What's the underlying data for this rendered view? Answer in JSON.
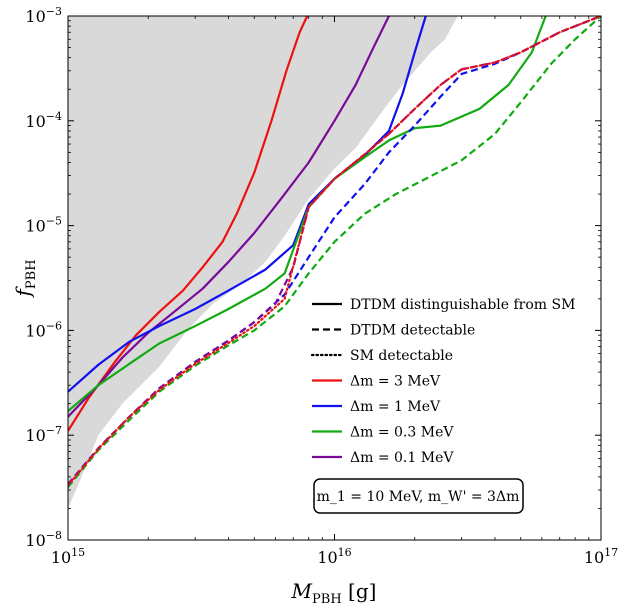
{
  "chart_data": {
    "type": "line",
    "xscale": "log",
    "yscale": "log",
    "xlim": [
      1000000000000000.0,
      1e+17
    ],
    "ylim": [
      1e-08,
      0.001
    ],
    "xlabel": "M_PBH [g]",
    "ylabel": "f_PBH",
    "grid": false,
    "legend_position": "lower-right",
    "x_ticks": [
      {
        "value": 1000000000000000.0,
        "label": "10^15"
      },
      {
        "value": 1e+16,
        "label": "10^16"
      },
      {
        "value": 1e+17,
        "label": "10^17"
      }
    ],
    "y_ticks": [
      {
        "value": 1e-08,
        "label": "10^-8"
      },
      {
        "value": 1e-07,
        "label": "10^-7"
      },
      {
        "value": 1e-06,
        "label": "10^-6"
      },
      {
        "value": 1e-05,
        "label": "10^-5"
      },
      {
        "value": 0.0001,
        "label": "10^-4"
      },
      {
        "value": 0.001,
        "label": "10^-3"
      }
    ],
    "excluded_region": {
      "color": "#d9d9d9",
      "boundary": [
        [
          1000000000000000.0,
          2e-08
        ],
        [
          1100000000000000.0,
          3.5e-08
        ],
        [
          1300000000000000.0,
          1e-07
        ],
        [
          1600000000000000.0,
          2e-07
        ],
        [
          2200000000000000.0,
          4.5e-07
        ],
        [
          2800000000000000.0,
          1e-06
        ],
        [
          3500000000000000.0,
          1.8e-06
        ],
        [
          4500000000000000.0,
          2.8e-06
        ],
        [
          5500000000000000.0,
          4.5e-06
        ],
        [
          6500000000000000.0,
          8e-06
        ],
        [
          8000000000000000.0,
          1.8e-05
        ],
        [
          1e+16,
          3.5e-05
        ],
        [
          1.2e+16,
          5.5e-05
        ],
        [
          1.5e+16,
          0.00012
        ],
        [
          1.8e+16,
          0.00022
        ],
        [
          2.3e+16,
          0.00045
        ],
        [
          2.6e+16,
          0.0006
        ],
        [
          2.9e+16,
          0.001
        ]
      ]
    },
    "legend": [
      {
        "label": "DTDM distinguishable from SM",
        "color": "#000000",
        "dash": "solid"
      },
      {
        "label": "DTDM detectable",
        "color": "#000000",
        "dash": "dashed"
      },
      {
        "label": "SM detectable",
        "color": "#000000",
        "dash": "dotted"
      },
      {
        "label": "Δm = 3 MeV",
        "color": "#ee1111",
        "dash": "solid"
      },
      {
        "label": "Δm = 1 MeV",
        "color": "#1111ee",
        "dash": "solid"
      },
      {
        "label": "Δm = 0.3 MeV",
        "color": "#11aa11",
        "dash": "solid"
      },
      {
        "label": "Δm = 0.1 MeV",
        "color": "#7a0a9a",
        "dash": "solid"
      }
    ],
    "annotation": "m_1 = 10 MeV, m_W' = 3Δm",
    "series": [
      {
        "color": "#ee1111",
        "dash": "solid",
        "points": [
          [
            1000000000000000.0,
            1.1e-07
          ],
          [
            1200000000000000.0,
            2.3e-07
          ],
          [
            1500000000000000.0,
            5e-07
          ],
          [
            1800000000000000.0,
            9e-07
          ],
          [
            2200000000000000.0,
            1.5e-06
          ],
          [
            2700000000000000.0,
            2.4e-06
          ],
          [
            3200000000000000.0,
            4e-06
          ],
          [
            3800000000000000.0,
            7e-06
          ],
          [
            4300000000000000.0,
            1.3e-05
          ],
          [
            5000000000000000.0,
            3.2e-05
          ],
          [
            5800000000000000.0,
            0.0001
          ],
          [
            6600000000000000.0,
            0.0003
          ],
          [
            7400000000000000.0,
            0.0007
          ],
          [
            7900000000000000.0,
            0.001
          ]
        ]
      },
      {
        "color": "#7a0a9a",
        "dash": "solid",
        "points": [
          [
            1000000000000000.0,
            1.5e-07
          ],
          [
            1300000000000000.0,
            3e-07
          ],
          [
            1600000000000000.0,
            5.5e-07
          ],
          [
            2000000000000000.0,
            9.5e-07
          ],
          [
            2500000000000000.0,
            1.5e-06
          ],
          [
            3200000000000000.0,
            2.5e-06
          ],
          [
            4000000000000000.0,
            4.5e-06
          ],
          [
            5000000000000000.0,
            8.5e-06
          ],
          [
            6300000000000000.0,
            1.8e-05
          ],
          [
            8000000000000000.0,
            4e-05
          ],
          [
            1e+16,
            0.0001
          ],
          [
            1.2e+16,
            0.00022
          ],
          [
            1.4e+16,
            0.0005
          ],
          [
            1.6e+16,
            0.001
          ]
        ]
      },
      {
        "color": "#1111ee",
        "dash": "solid",
        "points": [
          [
            1000000000000000.0,
            2.6e-07
          ],
          [
            1300000000000000.0,
            4.7e-07
          ],
          [
            1700000000000000.0,
            7.8e-07
          ],
          [
            2200000000000000.0,
            1.1e-06
          ],
          [
            3000000000000000.0,
            1.6e-06
          ],
          [
            4000000000000000.0,
            2.4e-06
          ],
          [
            5500000000000000.0,
            3.8e-06
          ],
          [
            7000000000000000.0,
            6.5e-06
          ],
          [
            8000000000000000.0,
            1.6e-05
          ],
          [
            1e+16,
            2.8e-05
          ],
          [
            1.3e+16,
            4.7e-05
          ],
          [
            1.6e+16,
            8e-05
          ],
          [
            1.8e+16,
            0.00018
          ],
          [
            2e+16,
            0.00045
          ],
          [
            2.2e+16,
            0.001
          ]
        ]
      },
      {
        "color": "#11aa11",
        "dash": "solid",
        "points": [
          [
            1000000000000000.0,
            1.7e-07
          ],
          [
            1300000000000000.0,
            3e-07
          ],
          [
            1700000000000000.0,
            4.8e-07
          ],
          [
            2200000000000000.0,
            7.5e-07
          ],
          [
            3000000000000000.0,
            1.1e-06
          ],
          [
            4000000000000000.0,
            1.6e-06
          ],
          [
            5500000000000000.0,
            2.5e-06
          ],
          [
            6500000000000000.0,
            3.5e-06
          ],
          [
            8000000000000000.0,
            1.5e-05
          ],
          [
            1e+16,
            2.8e-05
          ],
          [
            1.3e+16,
            4.5e-05
          ],
          [
            1.6e+16,
            6.5e-05
          ],
          [
            2e+16,
            8.5e-05
          ],
          [
            2.5e+16,
            9e-05
          ],
          [
            3.5e+16,
            0.00013
          ],
          [
            4.5e+16,
            0.00022
          ],
          [
            5.5e+16,
            0.00045
          ],
          [
            6.2e+16,
            0.001
          ]
        ]
      },
      {
        "color": "#1111ee",
        "dash": "dashed",
        "points": [
          [
            1000000000000000.0,
            3.4e-08
          ],
          [
            1300000000000000.0,
            7.5e-08
          ],
          [
            1700000000000000.0,
            1.5e-07
          ],
          [
            2200000000000000.0,
            2.8e-07
          ],
          [
            3000000000000000.0,
            5e-07
          ],
          [
            4000000000000000.0,
            8e-07
          ],
          [
            5000000000000000.0,
            1.2e-06
          ],
          [
            6500000000000000.0,
            2.2e-06
          ],
          [
            8000000000000000.0,
            5e-06
          ],
          [
            1e+16,
            1.2e-05
          ],
          [
            1.3e+16,
            2.5e-05
          ],
          [
            1.6e+16,
            5e-05
          ],
          [
            2e+16,
            9e-05
          ],
          [
            2.5e+16,
            0.00017
          ],
          [
            3e+16,
            0.00028
          ],
          [
            4e+16,
            0.00035
          ],
          [
            5e+16,
            0.00045
          ],
          [
            7e+16,
            0.0007
          ],
          [
            1e+17,
            0.001
          ]
        ]
      },
      {
        "color": "#7a0a9a",
        "dash": "dashed",
        "points": [
          [
            1000000000000000.0,
            3.4e-08
          ],
          [
            1300000000000000.0,
            7.5e-08
          ],
          [
            1700000000000000.0,
            1.5e-07
          ],
          [
            2200000000000000.0,
            2.8e-07
          ],
          [
            3000000000000000.0,
            5e-07
          ],
          [
            4000000000000000.0,
            8e-07
          ],
          [
            5000000000000000.0,
            1.2e-06
          ],
          [
            6000000000000000.0,
            1.8e-06
          ],
          [
            7000000000000000.0,
            4e-06
          ],
          [
            8000000000000000.0,
            1.5e-05
          ],
          [
            1e+16,
            2.8e-05
          ],
          [
            1.3e+16,
            4.8e-05
          ],
          [
            1.6e+16,
            7.5e-05
          ],
          [
            2e+16,
            0.00013
          ],
          [
            2.5e+16,
            0.00022
          ],
          [
            3e+16,
            0.00031
          ],
          [
            4e+16,
            0.00036
          ],
          [
            5e+16,
            0.00045
          ],
          [
            7e+16,
            0.0007
          ],
          [
            1e+17,
            0.001
          ]
        ]
      },
      {
        "color": "#11aa11",
        "dash": "dashed",
        "points": [
          [
            1000000000000000.0,
            3.2e-08
          ],
          [
            1300000000000000.0,
            7.2e-08
          ],
          [
            1700000000000000.0,
            1.4e-07
          ],
          [
            2200000000000000.0,
            2.6e-07
          ],
          [
            3000000000000000.0,
            4.6e-07
          ],
          [
            4000000000000000.0,
            7.2e-07
          ],
          [
            5000000000000000.0,
            1e-06
          ],
          [
            6500000000000000.0,
            1.7e-06
          ],
          [
            8000000000000000.0,
            3.5e-06
          ],
          [
            1e+16,
            7e-06
          ],
          [
            1.3e+16,
            1.3e-05
          ],
          [
            1.7e+16,
            2e-05
          ],
          [
            2.2e+16,
            2.8e-05
          ],
          [
            3e+16,
            4.2e-05
          ],
          [
            4e+16,
            7.5e-05
          ],
          [
            5e+16,
            0.00015
          ],
          [
            6.5e+16,
            0.00035
          ],
          [
            8e+16,
            0.0006
          ],
          [
            1e+17,
            0.001
          ]
        ]
      },
      {
        "color": "#ee1111",
        "dash": "dotted",
        "points": [
          [
            1000000000000000.0,
            3.3e-08
          ],
          [
            1300000000000000.0,
            7.4e-08
          ],
          [
            1700000000000000.0,
            1.5e-07
          ],
          [
            2200000000000000.0,
            2.7e-07
          ],
          [
            3000000000000000.0,
            4.8e-07
          ],
          [
            4000000000000000.0,
            7.6e-07
          ],
          [
            5000000000000000.0,
            1.1e-06
          ],
          [
            6500000000000000.0,
            2e-06
          ],
          [
            8000000000000000.0,
            1.5e-05
          ],
          [
            1e+16,
            2.8e-05
          ],
          [
            1.3e+16,
            4.8e-05
          ],
          [
            1.6e+16,
            7.5e-05
          ],
          [
            2e+16,
            0.00013
          ],
          [
            2.5e+16,
            0.00022
          ],
          [
            3e+16,
            0.00031
          ],
          [
            4e+16,
            0.00036
          ],
          [
            5e+16,
            0.00045
          ],
          [
            7e+16,
            0.0007
          ],
          [
            1e+17,
            0.001
          ]
        ]
      }
    ]
  }
}
